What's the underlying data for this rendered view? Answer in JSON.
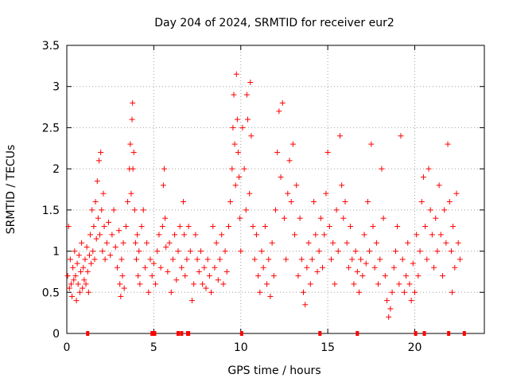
{
  "chart_data": {
    "type": "scatter",
    "title": "Day 204 of 2024, SRMTID for receiver eur2",
    "xlabel": "GPS time / hours",
    "ylabel": "SRMTID / TECUs",
    "xlim": [
      0,
      24
    ],
    "ylim": [
      0,
      3.5
    ],
    "xticks": [
      0,
      5,
      10,
      15,
      20
    ],
    "xtick_labels": [
      "0",
      "5",
      "10",
      "15",
      "20"
    ],
    "yticks": [
      0,
      0.5,
      1,
      1.5,
      2,
      2.5,
      3,
      3.5
    ],
    "ytick_labels": [
      "0",
      "0.5",
      "1",
      "1.5",
      "2",
      "2.5",
      "3",
      "3.5"
    ],
    "grid": true,
    "marker": "+",
    "color": "#ff0000",
    "series": [
      {
        "name": "SRMTID",
        "points": [
          [
            0.05,
            0.7
          ],
          [
            0.1,
            1.3
          ],
          [
            0.15,
            0.55
          ],
          [
            0.2,
            0.9
          ],
          [
            0.25,
            0.6
          ],
          [
            0.3,
            0.45
          ],
          [
            0.35,
            0.8
          ],
          [
            0.4,
            0.65
          ],
          [
            0.45,
            1.0
          ],
          [
            0.5,
            0.7
          ],
          [
            0.55,
            0.4
          ],
          [
            0.6,
            0.85
          ],
          [
            0.65,
            0.6
          ],
          [
            0.7,
            0.95
          ],
          [
            0.75,
            0.5
          ],
          [
            0.8,
            0.75
          ],
          [
            0.85,
            1.1
          ],
          [
            0.9,
            0.55
          ],
          [
            0.95,
            0.8
          ],
          [
            1.0,
            0.65
          ],
          [
            1.05,
            0.9
          ],
          [
            1.1,
            0.6
          ],
          [
            1.15,
            1.05
          ],
          [
            1.2,
            0.75
          ],
          [
            1.25,
            0.5
          ],
          [
            1.3,
            0.95
          ],
          [
            1.35,
            1.2
          ],
          [
            1.4,
            0.85
          ],
          [
            1.45,
            1.5
          ],
          [
            1.5,
            1.0
          ],
          [
            1.55,
            1.3
          ],
          [
            1.6,
            0.9
          ],
          [
            1.65,
            1.6
          ],
          [
            1.7,
            1.15
          ],
          [
            1.75,
            1.85
          ],
          [
            1.8,
            1.4
          ],
          [
            1.85,
            2.1
          ],
          [
            1.9,
            1.2
          ],
          [
            1.95,
            2.2
          ],
          [
            2.0,
            1.5
          ],
          [
            2.05,
            1.0
          ],
          [
            2.1,
            1.7
          ],
          [
            2.15,
            1.3
          ],
          [
            2.2,
            0.9
          ],
          [
            2.3,
            1.1
          ],
          [
            2.4,
            1.35
          ],
          [
            2.5,
            0.95
          ],
          [
            2.6,
            1.2
          ],
          [
            2.7,
            1.5
          ],
          [
            2.8,
            1.05
          ],
          [
            2.9,
            0.8
          ],
          [
            3.0,
            1.25
          ],
          [
            3.05,
            0.6
          ],
          [
            3.1,
            0.45
          ],
          [
            3.15,
            0.9
          ],
          [
            3.2,
            0.7
          ],
          [
            3.25,
            1.1
          ],
          [
            3.3,
            0.55
          ],
          [
            3.4,
            1.3
          ],
          [
            3.5,
            1.6
          ],
          [
            3.6,
            2.0
          ],
          [
            3.65,
            2.3
          ],
          [
            3.7,
            1.7
          ],
          [
            3.75,
            2.6
          ],
          [
            3.78,
            2.8
          ],
          [
            3.8,
            2.0
          ],
          [
            3.85,
            2.2
          ],
          [
            3.9,
            1.5
          ],
          [
            3.95,
            1.1
          ],
          [
            4.0,
            0.9
          ],
          [
            4.05,
            1.2
          ],
          [
            4.1,
            0.7
          ],
          [
            4.15,
            1.0
          ],
          [
            4.2,
            0.6
          ],
          [
            4.3,
            1.3
          ],
          [
            4.4,
            1.5
          ],
          [
            4.5,
            0.8
          ],
          [
            4.6,
            1.1
          ],
          [
            4.7,
            0.5
          ],
          [
            4.8,
            0.9
          ],
          [
            4.9,
            0.7
          ],
          [
            5.0,
            0.85
          ],
          [
            5.1,
            0.6
          ],
          [
            5.2,
            1.0
          ],
          [
            5.3,
            1.2
          ],
          [
            5.4,
            0.8
          ],
          [
            5.5,
            1.3
          ],
          [
            5.55,
            1.8
          ],
          [
            5.6,
            2.0
          ],
          [
            5.65,
            1.4
          ],
          [
            5.7,
            1.05
          ],
          [
            5.8,
            0.75
          ],
          [
            5.9,
            1.1
          ],
          [
            6.0,
            0.5
          ],
          [
            6.1,
            0.9
          ],
          [
            6.2,
            1.2
          ],
          [
            6.3,
            0.65
          ],
          [
            6.4,
            1.0
          ],
          [
            6.5,
            1.3
          ],
          [
            6.6,
            0.8
          ],
          [
            6.7,
            1.6
          ],
          [
            6.75,
            1.2
          ],
          [
            6.8,
            0.7
          ],
          [
            6.9,
            0.9
          ],
          [
            7.0,
            1.3
          ],
          [
            7.1,
            1.0
          ],
          [
            7.2,
            0.4
          ],
          [
            7.3,
            0.6
          ],
          [
            7.4,
            1.2
          ],
          [
            7.5,
            0.9
          ],
          [
            7.6,
            0.75
          ],
          [
            7.7,
            1.0
          ],
          [
            7.8,
            0.6
          ],
          [
            7.9,
            0.8
          ],
          [
            8.0,
            0.55
          ],
          [
            8.1,
            0.9
          ],
          [
            8.2,
            0.7
          ],
          [
            8.3,
            0.5
          ],
          [
            8.4,
            1.3
          ],
          [
            8.5,
            0.8
          ],
          [
            8.6,
            1.1
          ],
          [
            8.7,
            0.65
          ],
          [
            8.8,
            0.9
          ],
          [
            8.9,
            1.2
          ],
          [
            9.0,
            0.6
          ],
          [
            9.1,
            1.0
          ],
          [
            9.2,
            0.75
          ],
          [
            9.3,
            1.3
          ],
          [
            9.4,
            1.6
          ],
          [
            9.5,
            2.0
          ],
          [
            9.55,
            2.5
          ],
          [
            9.6,
            2.9
          ],
          [
            9.65,
            2.3
          ],
          [
            9.7,
            1.8
          ],
          [
            9.75,
            3.15
          ],
          [
            9.8,
            2.6
          ],
          [
            9.85,
            2.2
          ],
          [
            9.9,
            1.9
          ],
          [
            9.95,
            1.4
          ],
          [
            10.0,
            1.0
          ],
          [
            10.1,
            2.5
          ],
          [
            10.2,
            2.0
          ],
          [
            10.3,
            1.5
          ],
          [
            10.35,
            2.9
          ],
          [
            10.4,
            2.6
          ],
          [
            10.5,
            1.7
          ],
          [
            10.55,
            3.05
          ],
          [
            10.6,
            2.4
          ],
          [
            10.7,
            1.3
          ],
          [
            10.8,
            0.9
          ],
          [
            10.9,
            1.2
          ],
          [
            11.0,
            0.7
          ],
          [
            11.1,
            0.5
          ],
          [
            11.2,
            1.0
          ],
          [
            11.3,
            0.8
          ],
          [
            11.4,
            1.3
          ],
          [
            11.5,
            0.6
          ],
          [
            11.6,
            0.9
          ],
          [
            11.7,
            0.45
          ],
          [
            11.8,
            1.1
          ],
          [
            11.9,
            0.7
          ],
          [
            12.0,
            1.5
          ],
          [
            12.1,
            2.2
          ],
          [
            12.2,
            2.7
          ],
          [
            12.3,
            1.9
          ],
          [
            12.4,
            2.8
          ],
          [
            12.5,
            1.4
          ],
          [
            12.6,
            0.9
          ],
          [
            12.7,
            1.7
          ],
          [
            12.8,
            2.1
          ],
          [
            12.9,
            1.6
          ],
          [
            13.0,
            2.3
          ],
          [
            13.1,
            1.2
          ],
          [
            13.2,
            1.8
          ],
          [
            13.3,
            0.7
          ],
          [
            13.4,
            1.4
          ],
          [
            13.5,
            0.9
          ],
          [
            13.6,
            0.5
          ],
          [
            13.7,
            0.35
          ],
          [
            13.8,
            0.8
          ],
          [
            13.9,
            1.1
          ],
          [
            14.0,
            0.6
          ],
          [
            14.1,
            0.9
          ],
          [
            14.2,
            1.6
          ],
          [
            14.3,
            1.2
          ],
          [
            14.4,
            0.75
          ],
          [
            14.5,
            1.0
          ],
          [
            14.6,
            1.4
          ],
          [
            14.7,
            0.8
          ],
          [
            14.8,
            1.2
          ],
          [
            14.9,
            1.7
          ],
          [
            15.0,
            2.2
          ],
          [
            15.1,
            1.3
          ],
          [
            15.2,
            0.9
          ],
          [
            15.3,
            1.1
          ],
          [
            15.4,
            0.6
          ],
          [
            15.5,
            1.5
          ],
          [
            15.6,
            1.0
          ],
          [
            15.7,
            2.4
          ],
          [
            15.8,
            1.8
          ],
          [
            15.9,
            1.4
          ],
          [
            16.0,
            1.6
          ],
          [
            16.1,
            1.1
          ],
          [
            16.2,
            0.8
          ],
          [
            16.3,
            1.3
          ],
          [
            16.4,
            0.9
          ],
          [
            16.5,
            0.6
          ],
          [
            16.6,
            1.0
          ],
          [
            16.7,
            0.75
          ],
          [
            16.8,
            0.5
          ],
          [
            16.9,
            0.9
          ],
          [
            17.0,
            0.7
          ],
          [
            17.1,
            1.2
          ],
          [
            17.2,
            0.85
          ],
          [
            17.3,
            1.6
          ],
          [
            17.4,
            1.0
          ],
          [
            17.5,
            2.3
          ],
          [
            17.6,
            1.3
          ],
          [
            17.7,
            0.8
          ],
          [
            17.8,
            1.1
          ],
          [
            17.9,
            0.6
          ],
          [
            18.0,
            0.9
          ],
          [
            18.1,
            2.0
          ],
          [
            18.2,
            1.4
          ],
          [
            18.3,
            0.7
          ],
          [
            18.4,
            0.4
          ],
          [
            18.5,
            0.2
          ],
          [
            18.6,
            0.3
          ],
          [
            18.7,
            0.5
          ],
          [
            18.8,
            0.8
          ],
          [
            18.9,
            1.0
          ],
          [
            19.0,
            1.3
          ],
          [
            19.1,
            0.6
          ],
          [
            19.2,
            2.4
          ],
          [
            19.3,
            0.9
          ],
          [
            19.4,
            0.5
          ],
          [
            19.5,
            0.7
          ],
          [
            19.6,
            1.1
          ],
          [
            19.7,
            0.6
          ],
          [
            19.8,
            0.4
          ],
          [
            19.9,
            0.85
          ],
          [
            20.0,
            0.5
          ],
          [
            20.1,
            1.2
          ],
          [
            20.2,
            0.7
          ],
          [
            20.3,
            1.0
          ],
          [
            20.4,
            1.6
          ],
          [
            20.5,
            1.9
          ],
          [
            20.6,
            1.3
          ],
          [
            20.7,
            0.9
          ],
          [
            20.8,
            2.0
          ],
          [
            20.9,
            1.5
          ],
          [
            21.0,
            1.2
          ],
          [
            21.1,
            0.8
          ],
          [
            21.2,
            1.4
          ],
          [
            21.3,
            1.0
          ],
          [
            21.4,
            1.8
          ],
          [
            21.5,
            1.2
          ],
          [
            21.6,
            0.7
          ],
          [
            21.7,
            1.5
          ],
          [
            21.8,
            1.1
          ],
          [
            21.9,
            2.3
          ],
          [
            22.0,
            1.6
          ],
          [
            22.1,
            1.0
          ],
          [
            22.15,
            0.5
          ],
          [
            22.2,
            1.3
          ],
          [
            22.3,
            0.8
          ],
          [
            22.4,
            1.7
          ],
          [
            22.5,
            1.1
          ],
          [
            22.6,
            0.9
          ]
        ]
      }
    ],
    "zero_markers_x": [
      1.2,
      4.9,
      5.05,
      6.4,
      6.6,
      6.95,
      7.0,
      10.05,
      14.55,
      16.7,
      20.05,
      20.55,
      21.95,
      22.85
    ]
  }
}
